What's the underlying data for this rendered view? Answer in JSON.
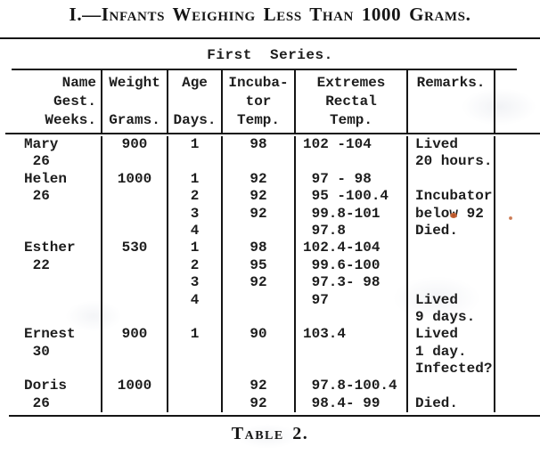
{
  "page": {
    "title": "I.—Infants Weighing Less Than 1000 Grams.",
    "series_heading": "First  Series.",
    "caption": "Table 2."
  },
  "table": {
    "headers": [
      "Name\nGest.\nWeeks.",
      "Weight\n\nGrams.",
      "Age\n\nDays.",
      "Incuba-\ntor\nTemp.",
      "Extremes\nRectal\nTemp.",
      "Remarks.",
      ""
    ],
    "rows": [
      [
        "Mary",
        "900",
        "1",
        "98",
        "102 -104",
        "Lived"
      ],
      [
        " 26",
        "",
        "",
        "",
        "",
        "20 hours."
      ],
      [
        "Helen",
        "1000",
        "1",
        "92",
        " 97 - 98",
        ""
      ],
      [
        " 26",
        "",
        "2",
        "92",
        " 95 -100.4",
        "Incubator"
      ],
      [
        "",
        "",
        "3",
        "92",
        " 99.8-101",
        "below 92"
      ],
      [
        "",
        "",
        "4",
        "",
        " 97.8",
        "Died."
      ],
      [
        "Esther",
        "530",
        "1",
        "98",
        "102.4-104",
        ""
      ],
      [
        " 22",
        "",
        "2",
        "95",
        " 99.6-100",
        ""
      ],
      [
        "",
        "",
        "3",
        "92",
        " 97.3- 98",
        ""
      ],
      [
        "",
        "",
        "4",
        "",
        " 97",
        "Lived"
      ],
      [
        "",
        "",
        "",
        "",
        "",
        "9 days."
      ],
      [
        "Ernest",
        "900",
        "1",
        "90",
        "103.4",
        "Lived"
      ],
      [
        " 30",
        "",
        "",
        "",
        "",
        "1 day."
      ],
      [
        "",
        "",
        "",
        "",
        "",
        "Infected?"
      ],
      [
        "Doris",
        "1000",
        "",
        "92",
        " 97.8-100.4",
        ""
      ],
      [
        " 26",
        "",
        "",
        "92",
        " 98.4- 99",
        "Died."
      ]
    ]
  },
  "colors": {
    "ink": "#1d1d1d",
    "rule": "#151515",
    "paper": "#ffffff",
    "artifact": "#b24a22"
  }
}
